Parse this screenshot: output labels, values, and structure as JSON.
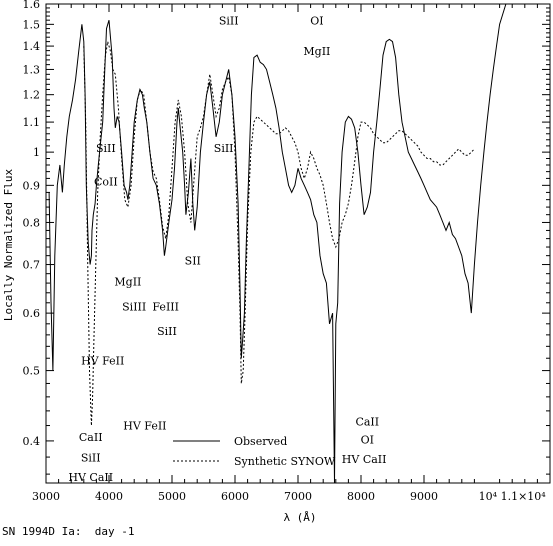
{
  "chart_data": {
    "type": "line",
    "xlabel": "λ (Å)",
    "ylabel": "Locally Normalized Flux",
    "xlim": [
      3000,
      11000
    ],
    "ylim": [
      0.35,
      1.6
    ],
    "yscale": "log",
    "x_ticks": [
      3000,
      4000,
      5000,
      6000,
      7000,
      8000,
      9000
    ],
    "x_tick_labels": [
      "3000",
      "4000",
      "5000",
      "6000",
      "7000",
      "8000",
      "9000"
    ],
    "x_tick_extra": "10⁴ 1.1×10⁴",
    "y_ticks": [
      0.4,
      0.5,
      0.6,
      0.7,
      0.8,
      0.9,
      1,
      1.1,
      1.2,
      1.3,
      1.4,
      1.5,
      1.6
    ],
    "y_tick_labels": [
      "0.4",
      "0.5",
      "0.6",
      "0.7",
      "0.8",
      "0.9",
      "1",
      "1.1",
      "1.2",
      "1.3",
      "1.4",
      "1.5",
      "1.6"
    ],
    "legend": {
      "placement": "bottom-center",
      "entries": [
        {
          "label": "Observed",
          "style": "solid"
        },
        {
          "label": "Synthetic SYNOW",
          "style": "dashed"
        }
      ]
    },
    "series": [
      {
        "name": "Observed",
        "style": "solid",
        "x": [
          3050,
          3080,
          3110,
          3140,
          3180,
          3220,
          3260,
          3290,
          3330,
          3370,
          3420,
          3470,
          3520,
          3570,
          3600,
          3620,
          3640,
          3670,
          3700,
          3720,
          3730,
          3750,
          3780,
          3800,
          3830,
          3860,
          3900,
          3930,
          3960,
          4000,
          4050,
          4080,
          4100,
          4130,
          4160,
          4200,
          4240,
          4280,
          4300,
          4330,
          4360,
          4400,
          4450,
          4490,
          4530,
          4560,
          4600,
          4650,
          4700,
          4750,
          4800,
          4850,
          4880,
          4900,
          4950,
          5000,
          5040,
          5080,
          5100,
          5130,
          5170,
          5200,
          5220,
          5260,
          5300,
          5330,
          5360,
          5400,
          5450,
          5500,
          5550,
          5600,
          5650,
          5700,
          5750,
          5800,
          5850,
          5900,
          5950,
          6000,
          6050,
          6080,
          6100,
          6120,
          6150,
          6180,
          6220,
          6260,
          6300,
          6350,
          6400,
          6450,
          6500,
          6550,
          6600,
          6650,
          6700,
          6750,
          6800,
          6850,
          6900,
          6950,
          7000,
          7050,
          7100,
          7150,
          7200,
          7250,
          7300,
          7350,
          7400,
          7450,
          7500,
          7550,
          7580,
          7600,
          7630,
          7660,
          7700,
          7750,
          7800,
          7850,
          7900,
          7950,
          8000,
          8050,
          8100,
          8150,
          8200,
          8250,
          8300,
          8350,
          8400,
          8450,
          8500,
          8550,
          8600,
          8650,
          8700,
          8750,
          8800,
          8850,
          8900,
          8950,
          9000,
          9050,
          9100,
          9150,
          9200,
          9250,
          9300,
          9350,
          9400,
          9450,
          9500,
          9550,
          9600,
          9650,
          9700,
          9750,
          9800,
          9850,
          9900,
          9950,
          10000,
          10050,
          10100,
          10150,
          10200,
          10250,
          10300,
          10350,
          10400,
          10450,
          10500,
          10550,
          10600,
          10650,
          10700,
          10750,
          10800,
          10850,
          10900,
          10950,
          11000
        ],
        "y": [
          0.88,
          0.62,
          0.5,
          0.72,
          0.9,
          0.96,
          0.88,
          0.96,
          1.05,
          1.12,
          1.18,
          1.26,
          1.38,
          1.5,
          1.42,
          1.2,
          0.9,
          0.75,
          0.7,
          0.72,
          0.78,
          0.82,
          0.85,
          0.9,
          0.96,
          1.02,
          1.1,
          1.28,
          1.48,
          1.52,
          1.35,
          1.15,
          1.08,
          1.12,
          1.1,
          1.0,
          0.9,
          0.88,
          0.86,
          0.9,
          0.98,
          1.1,
          1.18,
          1.22,
          1.2,
          1.15,
          1.1,
          1.0,
          0.92,
          0.9,
          0.85,
          0.78,
          0.72,
          0.74,
          0.8,
          0.86,
          0.95,
          1.1,
          1.15,
          1.08,
          1.0,
          0.9,
          0.82,
          0.88,
          0.98,
          0.85,
          0.78,
          0.84,
          1.0,
          1.1,
          1.2,
          1.25,
          1.15,
          1.05,
          1.1,
          1.2,
          1.25,
          1.3,
          1.2,
          1.05,
          0.85,
          0.65,
          0.52,
          0.55,
          0.6,
          0.75,
          0.95,
          1.2,
          1.35,
          1.36,
          1.33,
          1.32,
          1.3,
          1.25,
          1.2,
          1.15,
          1.08,
          1.0,
          0.95,
          0.9,
          0.88,
          0.9,
          0.95,
          0.92,
          0.9,
          0.88,
          0.86,
          0.82,
          0.8,
          0.72,
          0.68,
          0.66,
          0.58,
          0.6,
          0.35,
          0.58,
          0.62,
          0.85,
          1.0,
          1.1,
          1.12,
          1.11,
          1.08,
          1.0,
          0.9,
          0.82,
          0.84,
          0.88,
          1.0,
          1.1,
          1.22,
          1.36,
          1.42,
          1.43,
          1.42,
          1.35,
          1.2,
          1.1,
          1.05,
          1.0,
          0.98,
          0.96,
          0.94,
          0.92,
          0.9,
          0.88,
          0.86,
          0.85,
          0.84,
          0.82,
          0.8,
          0.78,
          0.8,
          0.77,
          0.76,
          0.74,
          0.72,
          0.68,
          0.66,
          0.6,
          0.7,
          0.8,
          0.9,
          1.0,
          1.1,
          1.2,
          1.3,
          1.4,
          1.5,
          1.55,
          1.6,
          1.6,
          1.6,
          1.6,
          1.6,
          1.6,
          1.6,
          1.6,
          1.6,
          1.6,
          1.6,
          1.6,
          1.6,
          1.6,
          1.6
        ]
      },
      {
        "name": "Synthetic SYNOW",
        "style": "dashed",
        "x": [
          3600,
          3630,
          3660,
          3690,
          3720,
          3740,
          3760,
          3790,
          3820,
          3860,
          3900,
          3940,
          3980,
          4020,
          4060,
          4100,
          4150,
          4200,
          4250,
          4300,
          4350,
          4400,
          4450,
          4500,
          4550,
          4600,
          4650,
          4700,
          4750,
          4800,
          4850,
          4900,
          4950,
          5000,
          5050,
          5100,
          5150,
          5200,
          5250,
          5300,
          5350,
          5400,
          5450,
          5500,
          5550,
          5600,
          5650,
          5700,
          5750,
          5800,
          5850,
          5900,
          5950,
          6000,
          6050,
          6080,
          6100,
          6130,
          6160,
          6200,
          6250,
          6300,
          6350,
          6400,
          6450,
          6500,
          6550,
          6600,
          6650,
          6700,
          6750,
          6800,
          6850,
          6900,
          6950,
          7000,
          7050,
          7100,
          7150,
          7200,
          7250,
          7300,
          7350,
          7400,
          7450,
          7500,
          7550,
          7600,
          7650,
          7700,
          7750,
          7800,
          7850,
          7900,
          7950,
          8000,
          8050,
          8100,
          8150,
          8200,
          8250,
          8300,
          8350,
          8400,
          8450,
          8500,
          8550,
          8600,
          8650,
          8700,
          8750,
          8800,
          8850,
          8900,
          8950,
          9000,
          9050,
          9100,
          9150,
          9200,
          9250,
          9300,
          9350,
          9400,
          9450,
          9500,
          9550,
          9600,
          9650,
          9700,
          9750,
          9800
        ],
        "y": [
          1.4,
          1.1,
          0.72,
          0.5,
          0.42,
          0.46,
          0.55,
          0.7,
          0.88,
          1.05,
          1.2,
          1.35,
          1.42,
          1.38,
          1.3,
          1.28,
          1.15,
          0.98,
          0.86,
          0.84,
          0.9,
          1.05,
          1.18,
          1.22,
          1.2,
          1.1,
          1.0,
          0.94,
          0.92,
          0.86,
          0.79,
          0.76,
          0.82,
          0.95,
          1.1,
          1.18,
          1.12,
          1.0,
          0.85,
          0.8,
          0.92,
          1.05,
          1.08,
          1.12,
          1.2,
          1.28,
          1.2,
          1.12,
          1.15,
          1.22,
          1.25,
          1.27,
          1.2,
          1.0,
          0.75,
          0.6,
          0.48,
          0.5,
          0.6,
          0.8,
          1.0,
          1.1,
          1.12,
          1.11,
          1.1,
          1.09,
          1.08,
          1.07,
          1.06,
          1.06,
          1.07,
          1.08,
          1.07,
          1.05,
          1.03,
          1.0,
          0.95,
          0.92,
          0.95,
          1.0,
          0.98,
          0.95,
          0.93,
          0.9,
          0.85,
          0.8,
          0.76,
          0.74,
          0.76,
          0.8,
          0.82,
          0.85,
          0.9,
          0.97,
          1.05,
          1.1,
          1.1,
          1.09,
          1.08,
          1.06,
          1.05,
          1.04,
          1.03,
          1.03,
          1.04,
          1.05,
          1.06,
          1.07,
          1.07,
          1.06,
          1.05,
          1.04,
          1.03,
          1.02,
          1.0,
          0.99,
          0.98,
          0.98,
          0.97,
          0.97,
          0.96,
          0.96,
          0.97,
          0.98,
          0.99,
          1.0,
          1.01,
          1.0,
          0.99,
          0.99,
          1.0,
          1.01
        ]
      }
    ],
    "annotations": [
      {
        "text": "SiII",
        "x": 3950,
        "y": 1.0
      },
      {
        "text": "CoII",
        "x": 3950,
        "y": 0.9
      },
      {
        "text": "MgII",
        "x": 4300,
        "y": 0.655
      },
      {
        "text": "SiIII",
        "x": 4400,
        "y": 0.605
      },
      {
        "text": "FeIII",
        "x": 4900,
        "y": 0.605
      },
      {
        "text": "SiII",
        "x": 4920,
        "y": 0.56
      },
      {
        "text": "SII",
        "x": 5330,
        "y": 0.7
      },
      {
        "text": "SiII",
        "x": 5820,
        "y": 1.0
      },
      {
        "text": "SiII",
        "x": 5900,
        "y": 1.5
      },
      {
        "text": "OI",
        "x": 7300,
        "y": 1.5
      },
      {
        "text": "MgII",
        "x": 7300,
        "y": 1.36
      },
      {
        "text": "HV FeII",
        "x": 3900,
        "y": 0.51
      },
      {
        "text": "HV FeII",
        "x": 4570,
        "y": 0.415
      },
      {
        "text": "CaII",
        "x": 3710,
        "y": 0.4
      },
      {
        "text": "SiII",
        "x": 3710,
        "y": 0.375
      },
      {
        "text": "HV CaII",
        "x": 3710,
        "y": 0.352
      },
      {
        "text": "CaII",
        "x": 8100,
        "y": 0.42
      },
      {
        "text": "OI",
        "x": 8100,
        "y": 0.397
      },
      {
        "text": "HV CaII",
        "x": 8050,
        "y": 0.373
      }
    ]
  },
  "caption": "SN 1994D Ia:  day -1"
}
